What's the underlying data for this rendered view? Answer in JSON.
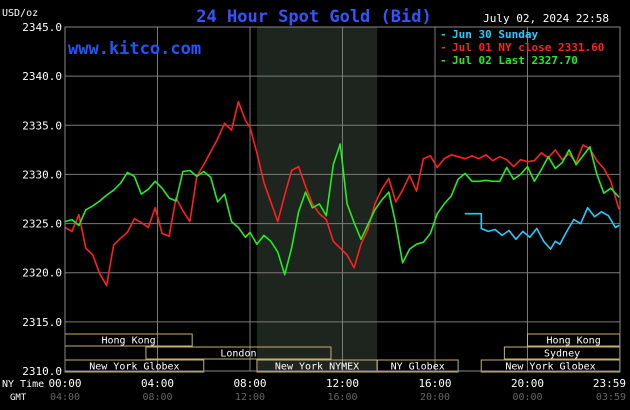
{
  "title": "24 Hour Spot Gold (Bid)",
  "watermark": "www.kitco.com",
  "timestamp": "July 02, 2024 22:58",
  "unit_label": "USD/oz",
  "legend": [
    {
      "label": "Jun 30 Sunday",
      "color": "#22ccff"
    },
    {
      "label": "Jul 01 NY close 2331.60",
      "color": "#ff2020"
    },
    {
      "label": "Jul 02 Last 2327.70",
      "color": "#22ee22"
    }
  ],
  "axis": {
    "y_ticks": [
      "2345.0",
      "2340.0",
      "2335.0",
      "2330.0",
      "2325.0",
      "2320.0",
      "2315.0",
      "2310.0"
    ],
    "x_ticks_ny": [
      "00:00",
      "04:00",
      "08:00",
      "12:00",
      "16:00",
      "20:00",
      "23:59"
    ],
    "x_ticks_gmt": [
      "04:00",
      "08:00",
      "12:00",
      "16:00",
      "20:00",
      "00:00",
      "03:59"
    ],
    "ny_time_label": "NY Time",
    "gmt_label": "GMT"
  },
  "sessions": [
    {
      "label": "Hong Kong",
      "row": 0,
      "start_h": 0.0,
      "end_h": 5.5
    },
    {
      "label": "Hong Kong",
      "row": 0,
      "start_h": 20.0,
      "end_h": 23.99
    },
    {
      "label": "London",
      "row": 1,
      "start_h": 3.5,
      "end_h": 11.5
    },
    {
      "label": "Sydney",
      "row": 1,
      "start_h": 19.0,
      "end_h": 23.99
    },
    {
      "label": "New York Globex",
      "row": 2,
      "start_h": 0.0,
      "end_h": 6.0
    },
    {
      "label": "New York NYMEX",
      "row": 2,
      "start_h": 8.3,
      "end_h": 13.5
    },
    {
      "label": "NY Globex",
      "row": 2,
      "start_h": 13.5,
      "end_h": 17.0
    },
    {
      "label": "New York Globex",
      "row": 2,
      "start_h": 18.0,
      "end_h": 23.99
    }
  ],
  "chart_data": {
    "type": "line",
    "ylim": [
      2310,
      2345
    ],
    "xlim_hours": [
      0,
      24
    ],
    "highlight_hours": [
      8.3,
      13.5
    ],
    "series": [
      {
        "name": "Jun 30 Sunday",
        "color": "#22ccff",
        "x": [
          17.3,
          18.0,
          18.0,
          18.3,
          18.6,
          18.9,
          19.2,
          19.5,
          19.8,
          20.1,
          20.4,
          20.7,
          21.0,
          21.2,
          21.4,
          21.7,
          22.0,
          22.3,
          22.6,
          22.9,
          23.2,
          23.5,
          23.8,
          23.95
        ],
        "y": [
          2326.0,
          2326.0,
          2324.5,
          2324.2,
          2324.4,
          2323.8,
          2324.3,
          2323.4,
          2324.2,
          2323.6,
          2324.5,
          2323.2,
          2322.4,
          2323.2,
          2322.9,
          2324.2,
          2325.4,
          2325.0,
          2326.6,
          2325.7,
          2326.2,
          2325.8,
          2324.6,
          2324.8
        ]
      },
      {
        "name": "Jul 01 NY close 2331.60",
        "color": "#ff2020",
        "x": [
          0.0,
          0.3,
          0.6,
          0.9,
          1.2,
          1.5,
          1.8,
          2.1,
          2.4,
          2.7,
          3.0,
          3.3,
          3.6,
          3.9,
          4.2,
          4.5,
          4.8,
          5.1,
          5.4,
          5.7,
          6.0,
          6.3,
          6.6,
          6.9,
          7.2,
          7.5,
          7.8,
          8.0,
          8.3,
          8.6,
          8.9,
          9.2,
          9.5,
          9.8,
          10.1,
          10.4,
          10.7,
          11.0,
          11.3,
          11.6,
          11.9,
          12.2,
          12.5,
          12.8,
          13.1,
          13.4,
          13.7,
          14.0,
          14.3,
          14.6,
          14.9,
          15.2,
          15.5,
          15.8,
          16.1,
          16.4,
          16.7,
          17.0,
          17.3,
          17.6,
          17.9,
          18.2,
          18.5,
          18.8,
          19.1,
          19.4,
          19.7,
          20.0,
          20.3,
          20.6,
          20.9,
          21.2,
          21.5,
          21.8,
          22.1,
          22.4,
          22.7,
          23.0,
          23.3,
          23.6,
          23.95
        ],
        "y": [
          2324.6,
          2324.2,
          2325.9,
          2322.5,
          2321.8,
          2319.9,
          2318.7,
          2322.8,
          2323.5,
          2324.1,
          2325.5,
          2325.1,
          2324.6,
          2326.6,
          2324.0,
          2323.7,
          2327.6,
          2326.3,
          2325.2,
          2329.8,
          2331.0,
          2332.3,
          2333.6,
          2335.2,
          2334.5,
          2337.4,
          2335.5,
          2334.8,
          2332.2,
          2329.2,
          2327.2,
          2325.2,
          2327.9,
          2330.4,
          2330.8,
          2328.8,
          2327.0,
          2326.0,
          2325.4,
          2323.2,
          2322.5,
          2321.8,
          2320.5,
          2322.9,
          2324.4,
          2327.0,
          2328.5,
          2329.6,
          2327.2,
          2328.4,
          2329.9,
          2328.3,
          2331.6,
          2331.9,
          2330.7,
          2331.6,
          2332.0,
          2331.8,
          2331.6,
          2331.9,
          2331.6,
          2332.0,
          2331.4,
          2331.8,
          2331.5,
          2330.8,
          2331.5,
          2331.3,
          2331.4,
          2332.2,
          2331.7,
          2332.5,
          2331.5,
          2332.1,
          2331.2,
          2333.0,
          2332.6,
          2331.4,
          2330.6,
          2329.3,
          2326.5
        ]
      },
      {
        "name": "Jul 02 Last 2327.70",
        "color": "#22ee22",
        "x": [
          0.0,
          0.3,
          0.6,
          0.9,
          1.2,
          1.5,
          1.8,
          2.1,
          2.4,
          2.7,
          3.0,
          3.3,
          3.6,
          3.9,
          4.2,
          4.5,
          4.8,
          5.1,
          5.4,
          5.7,
          6.0,
          6.3,
          6.6,
          6.9,
          7.2,
          7.5,
          7.8,
          8.0,
          8.3,
          8.6,
          8.9,
          9.2,
          9.5,
          9.8,
          10.1,
          10.4,
          10.7,
          11.0,
          11.3,
          11.6,
          11.9,
          12.2,
          12.5,
          12.8,
          13.1,
          13.4,
          13.7,
          14.0,
          14.3,
          14.6,
          14.9,
          15.2,
          15.5,
          15.8,
          16.1,
          16.4,
          16.7,
          17.0,
          17.3,
          17.6,
          17.9,
          18.2,
          18.5,
          18.8,
          19.1,
          19.4,
          19.7,
          20.0,
          20.3,
          20.6,
          20.9,
          21.2,
          21.5,
          21.8,
          22.1,
          22.4,
          22.7,
          23.0,
          23.3,
          23.6,
          23.95
        ],
        "y": [
          2325.2,
          2325.4,
          2324.8,
          2326.4,
          2326.8,
          2327.3,
          2327.9,
          2328.4,
          2329.1,
          2330.2,
          2329.8,
          2328.0,
          2328.5,
          2329.3,
          2328.6,
          2327.6,
          2327.3,
          2330.3,
          2330.4,
          2329.8,
          2330.3,
          2329.7,
          2327.2,
          2328.0,
          2325.2,
          2324.6,
          2323.6,
          2324.1,
          2322.9,
          2323.8,
          2323.2,
          2322.1,
          2319.8,
          2322.5,
          2326.2,
          2328.2,
          2326.6,
          2327.0,
          2325.8,
          2331.0,
          2333.1,
          2327.0,
          2325.1,
          2323.4,
          2324.9,
          2326.4,
          2327.4,
          2328.2,
          2325.0,
          2321.0,
          2322.4,
          2322.9,
          2323.1,
          2324.0,
          2326.0,
          2327.0,
          2327.8,
          2329.5,
          2330.1,
          2329.3,
          2329.3,
          2329.4,
          2329.3,
          2329.3,
          2330.7,
          2329.5,
          2330.0,
          2330.8,
          2329.3,
          2330.5,
          2331.8,
          2330.6,
          2331.2,
          2332.5,
          2331.0,
          2331.9,
          2332.8,
          2330.0,
          2328.1,
          2328.6,
          2327.7
        ]
      }
    ]
  }
}
